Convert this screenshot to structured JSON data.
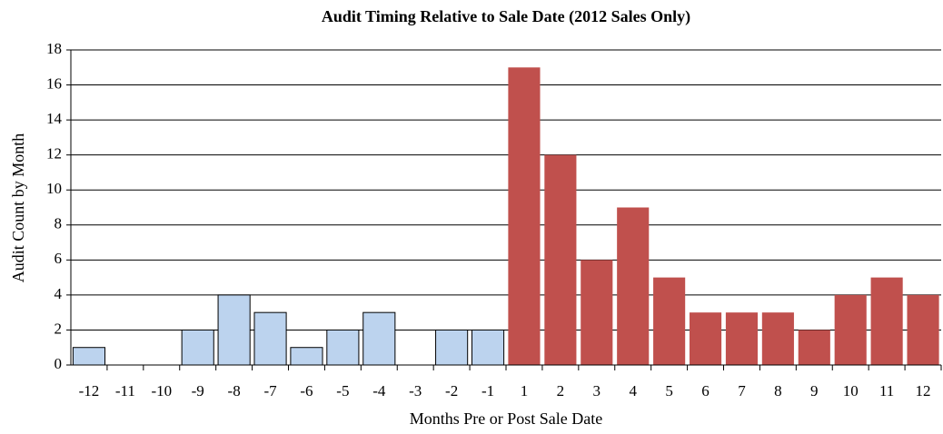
{
  "chart_data": {
    "type": "bar",
    "title": "Audit Timing Relative to Sale Date (2012 Sales Only)",
    "x_label": "Months Pre or Post Sale Date",
    "y_label": "Audit Count by Month",
    "categories": [
      "-12",
      "-11",
      "-10",
      "-9",
      "-8",
      "-7",
      "-6",
      "-5",
      "-4",
      "-3",
      "-2",
      "-1",
      "1",
      "2",
      "3",
      "4",
      "5",
      "6",
      "7",
      "8",
      "9",
      "10",
      "11",
      "12"
    ],
    "values": [
      1,
      0,
      0,
      2,
      4,
      3,
      1,
      2,
      3,
      0,
      2,
      2,
      17,
      12,
      6,
      9,
      5,
      3,
      3,
      3,
      2,
      4,
      5,
      4
    ],
    "colors": [
      "#bcd3ee",
      "#bcd3ee",
      "#bcd3ee",
      "#bcd3ee",
      "#bcd3ee",
      "#bcd3ee",
      "#bcd3ee",
      "#bcd3ee",
      "#bcd3ee",
      "#bcd3ee",
      "#bcd3ee",
      "#bcd3ee",
      "#c0504d",
      "#c0504d",
      "#c0504d",
      "#c0504d",
      "#c0504d",
      "#c0504d",
      "#c0504d",
      "#c0504d",
      "#c0504d",
      "#c0504d",
      "#c0504d",
      "#c0504d"
    ],
    "ylim": [
      0,
      18
    ],
    "yticks": [
      0,
      2,
      4,
      6,
      8,
      10,
      12,
      14,
      16,
      18
    ],
    "grid": true
  }
}
